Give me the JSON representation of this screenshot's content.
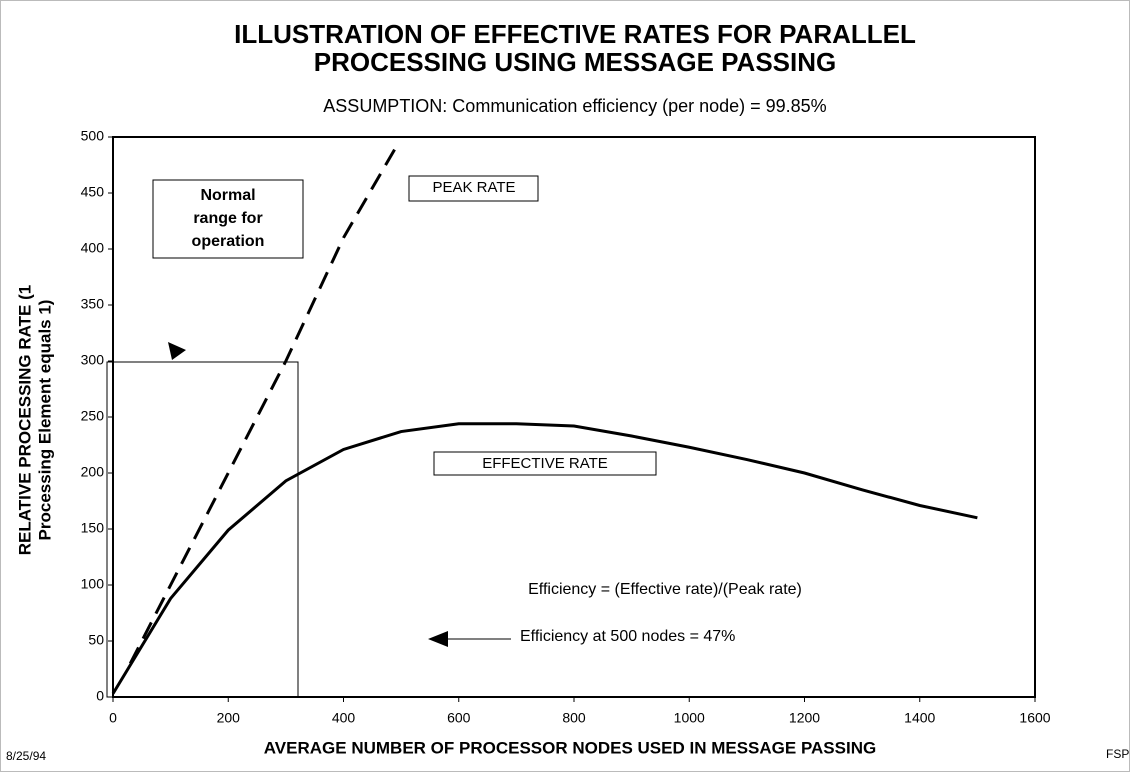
{
  "chart_data": {
    "type": "line",
    "title": [
      "ILLUSTRATION OF EFFECTIVE RATES FOR PARALLEL",
      "PROCESSING USING MESSAGE PASSING"
    ],
    "subtitle": "ASSUMPTION:  Communication efficiency (per node) = 99.85%",
    "x_label": "AVERAGE  NUMBER  OF  PROCESSOR  NODES  USED  IN  MESSAGE  PASSING",
    "y_label": [
      "RELATIVE  PROCESSING  RATE  (1",
      "Processing  Element  equals  1)"
    ],
    "series": [
      {
        "name": "PEAK RATE",
        "color": "#000000",
        "dashed": true,
        "x": [
          30,
          100,
          200,
          300,
          400,
          490
        ],
        "values": [
          30,
          100,
          200,
          300,
          410,
          490
        ]
      },
      {
        "name": "EFFECTIVE RATE",
        "color": "#000000",
        "dashed": false,
        "x": [
          0,
          100,
          200,
          300,
          400,
          500,
          600,
          700,
          800,
          900,
          1000,
          1100,
          1200,
          1300,
          1400,
          1500
        ],
        "values": [
          3,
          88,
          149,
          193,
          221,
          237,
          244,
          244,
          242,
          233,
          223,
          212,
          200,
          185,
          171,
          160
        ]
      }
    ],
    "annotations": [
      "Normal",
      "range for",
      "operation",
      "Efficiency = (Effective rate)/(Peak rate)",
      "Efficiency at 500 nodes = 47%"
    ],
    "footer_left": "8/25/94",
    "footer_right": "FSP",
    "xlim": [
      0,
      1600
    ],
    "xticks": [
      0,
      200,
      400,
      600,
      800,
      1000,
      1200,
      1400,
      1600
    ],
    "ylim": [
      0,
      500
    ],
    "yticks": [
      0,
      50,
      100,
      150,
      200,
      250,
      300,
      350,
      400,
      450,
      500
    ]
  }
}
